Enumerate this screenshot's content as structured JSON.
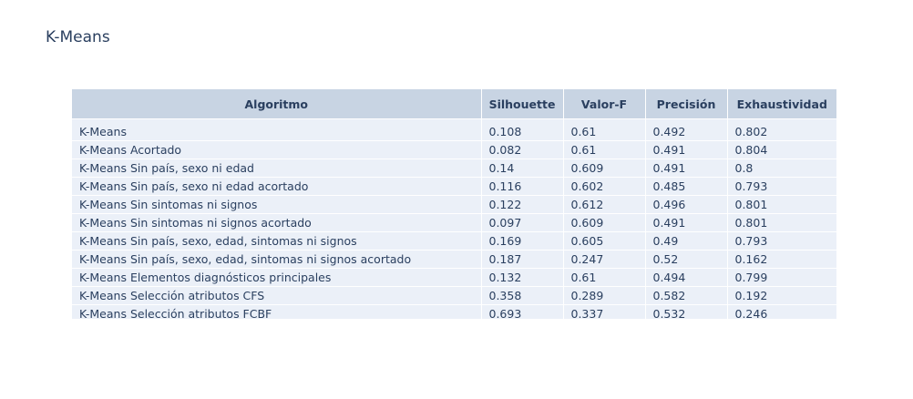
{
  "chart_data": {
    "type": "table",
    "title": "K-Means",
    "columns": [
      "Algoritmo",
      "Silhouette",
      "Valor-F",
      "Precisión",
      "Exhaustividad"
    ],
    "rows": [
      [
        "K-Means",
        "0.108",
        "0.61",
        "0.492",
        "0.802"
      ],
      [
        "K-Means Acortado",
        "0.082",
        "0.61",
        "0.491",
        "0.804"
      ],
      [
        "K-Means Sin país, sexo ni edad",
        "0.14",
        "0.609",
        "0.491",
        "0.8"
      ],
      [
        "K-Means Sin país, sexo ni edad acortado",
        "0.116",
        "0.602",
        "0.485",
        "0.793"
      ],
      [
        "K-Means Sin sintomas ni signos",
        "0.122",
        "0.612",
        "0.496",
        "0.801"
      ],
      [
        "K-Means Sin sintomas ni signos acortado",
        "0.097",
        "0.609",
        "0.491",
        "0.801"
      ],
      [
        "K-Means Sin país, sexo, edad, sintomas ni signos",
        "0.169",
        "0.605",
        "0.49",
        "0.793"
      ],
      [
        "K-Means Sin país, sexo, edad, sintomas ni signos acortado",
        "0.187",
        "0.247",
        "0.52",
        "0.162"
      ],
      [
        "K-Means Elementos diagnósticos principales",
        "0.132",
        "0.61",
        "0.494",
        "0.799"
      ],
      [
        "K-Means Selección atributos CFS",
        "0.358",
        "0.289",
        "0.582",
        "0.192"
      ],
      [
        "K-Means Selección atributos FCBF",
        "0.693",
        "0.337",
        "0.532",
        "0.246"
      ]
    ],
    "colors": {
      "header_fill": "#c8d4e3",
      "cell_fill": "#ebf0f8",
      "text": "#2a3f5f"
    }
  }
}
